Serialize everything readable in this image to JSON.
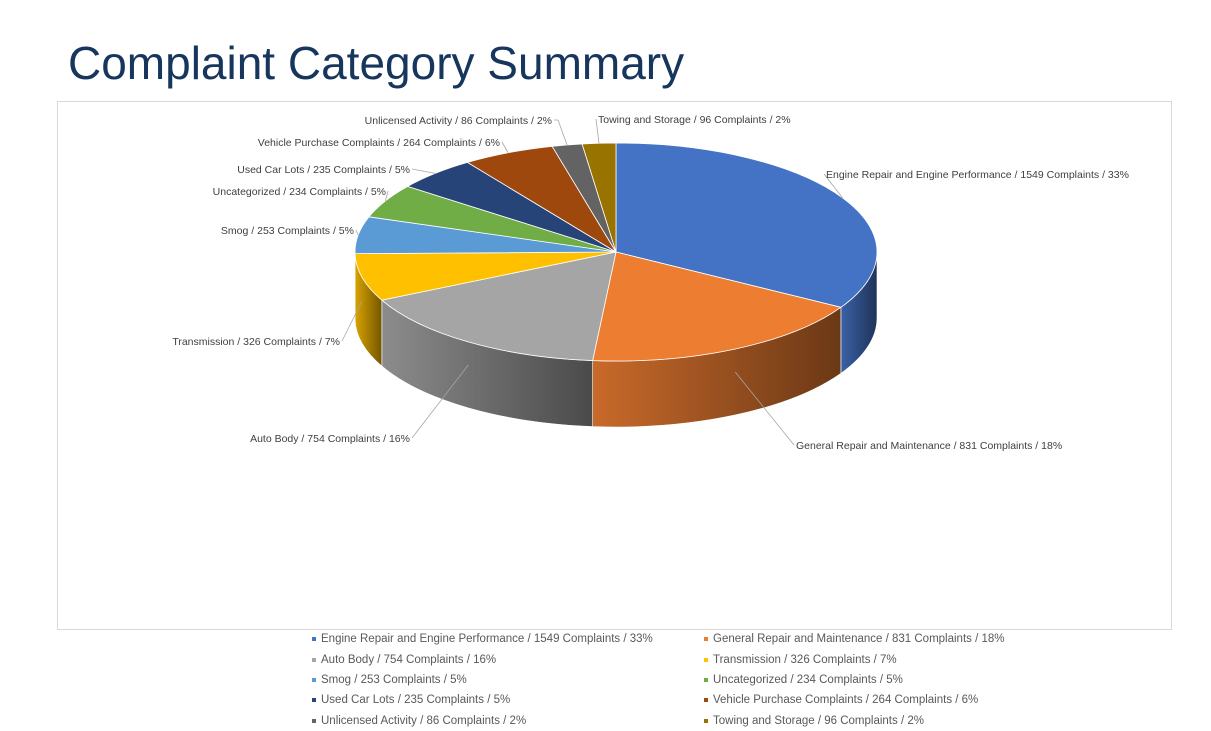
{
  "slide": {
    "title": "Complaint Category Summary"
  },
  "chart_data": {
    "type": "pie",
    "variant": "3d",
    "legend_position": "bottom",
    "slices": [
      {
        "label": "Engine Repair and Engine Performance / 1549 Complaints  / 33%",
        "legend": "Engine Repair and Engine Performance / 1549 Complaints / 33%",
        "value": 1549,
        "percent": 33,
        "color": "#4472c4"
      },
      {
        "label": "General Repair and Maintenance  / 831 Complaints  / 18%",
        "legend": "General Repair and Maintenance / 831 Complaints / 18%",
        "value": 831,
        "percent": 18,
        "color": "#ed7d31"
      },
      {
        "label": "Auto Body / 754 Complaints  / 16%",
        "legend": "Auto Body / 754 Complaints / 16%",
        "value": 754,
        "percent": 16,
        "color": "#a5a5a5"
      },
      {
        "label": "Transmission  / 326 Complaints  / 7%",
        "legend": "Transmission / 326 Complaints / 7%",
        "value": 326,
        "percent": 7,
        "color": "#ffc000"
      },
      {
        "label": "Smog  / 253 Complaints  / 5%",
        "legend": "Smog / 253 Complaints / 5%",
        "value": 253,
        "percent": 5,
        "color": "#5b9bd5"
      },
      {
        "label": "Uncategorized  / 234 Complaints  / 5%",
        "legend": "Uncategorized / 234 Complaints / 5%",
        "value": 234,
        "percent": 5,
        "color": "#70ad47"
      },
      {
        "label": "Used Car Lots / 235 Complaints  / 5%",
        "legend": "Used Car Lots / 235 Complaints / 5%",
        "value": 235,
        "percent": 5,
        "color": "#264478"
      },
      {
        "label": "Vehicle Purchase Complaints  / 264 Complaints  / 6%",
        "legend": "Vehicle Purchase Complaints / 264 Complaints / 6%",
        "value": 264,
        "percent": 6,
        "color": "#9e480e"
      },
      {
        "label": "Unlicensed  Activity  / 86 Complaints  / 2%",
        "legend": "Unlicensed Activity / 86 Complaints / 2%",
        "value": 86,
        "percent": 2,
        "color": "#636363"
      },
      {
        "label": "Towing  and Storage   / 96 Complaints  / 2%",
        "legend": "Towing and Storage  / 96 Complaints / 2%",
        "value": 96,
        "percent": 2,
        "color": "#997300"
      }
    ]
  }
}
